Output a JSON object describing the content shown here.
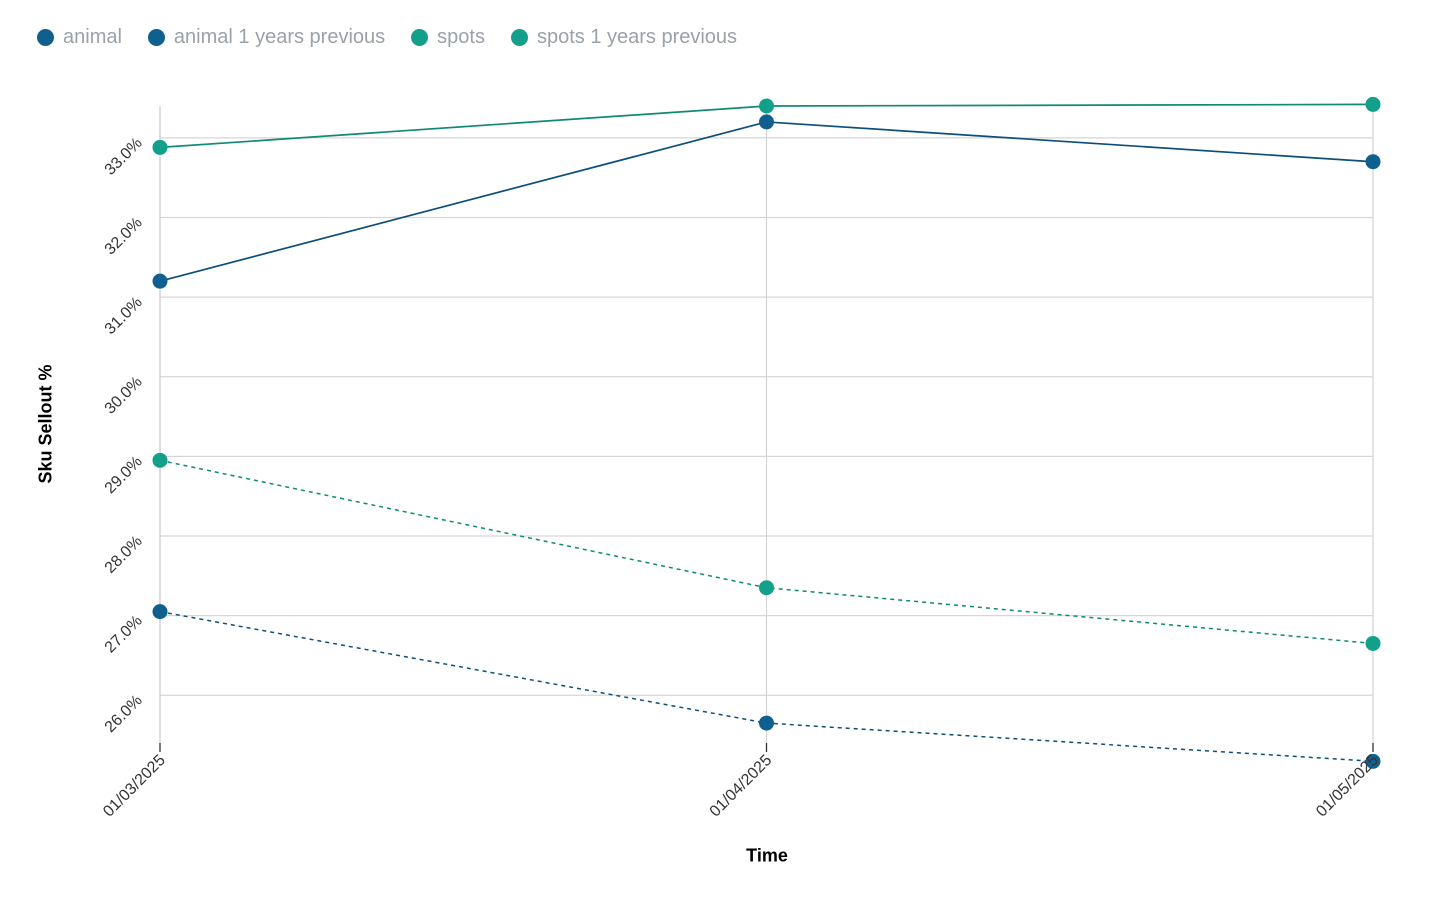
{
  "legend": {
    "items": [
      {
        "label": "animal",
        "color": "#0f5f8f"
      },
      {
        "label": "animal 1 years previous",
        "color": "#0f5f8f"
      },
      {
        "label": "spots",
        "color": "#13a08a"
      },
      {
        "label": "spots 1 years previous",
        "color": "#13a08a"
      }
    ]
  },
  "chart_data": {
    "type": "line",
    "x": [
      "01/03/2025",
      "01/04/2025",
      "01/05/2025"
    ],
    "xlabel": "Time",
    "ylabel": "Sku Sellout %",
    "ylim": [
      25.4,
      33.4
    ],
    "yticks": [
      26.0,
      27.0,
      28.0,
      29.0,
      30.0,
      31.0,
      32.0,
      33.0
    ],
    "ytick_labels": [
      "26.0%",
      "27.0%",
      "28.0%",
      "29.0%",
      "30.0%",
      "31.0%",
      "32.0%",
      "33.0%"
    ],
    "grid": true,
    "legend_position": "top-left",
    "series": [
      {
        "name": "animal",
        "values": [
          31.2,
          33.2,
          32.7
        ],
        "color": "#0f5f8f",
        "line_color": "#0d4f7a",
        "dashed": false
      },
      {
        "name": "animal 1 years previous",
        "values": [
          27.05,
          25.65,
          25.17
        ],
        "color": "#0f5f8f",
        "line_color": "#0d4f7a",
        "dashed": true
      },
      {
        "name": "spots",
        "values": [
          32.88,
          33.4,
          33.42
        ],
        "color": "#13a08a",
        "line_color": "#0e8a75",
        "dashed": false
      },
      {
        "name": "spots 1 years previous",
        "values": [
          28.95,
          27.35,
          26.65
        ],
        "color": "#13a08a",
        "line_color": "#0e8a75",
        "dashed": true
      }
    ]
  }
}
